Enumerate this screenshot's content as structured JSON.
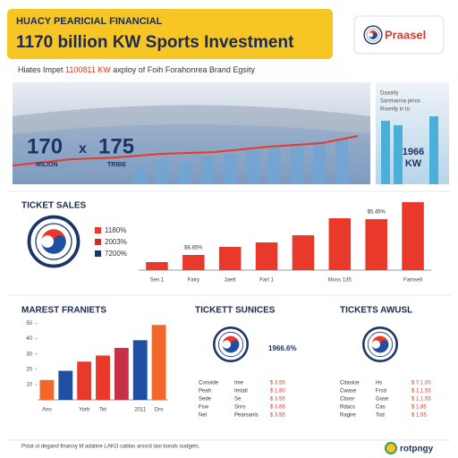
{
  "header": {
    "kicker": "HUACY PEARICIAL FINANCIAL",
    "title": "1170 billion KW Sports Investment",
    "logo": "Praasel"
  },
  "subtitle": {
    "before": "Hiates Impet",
    "highlight": "1100811 KW",
    "after": "axploy of Foih Forahonrea Brand Egsity"
  },
  "hero": {
    "big_left": "170",
    "times": "x",
    "big_right": "175",
    "unit_left": "MILION",
    "unit_right": "TRIBE"
  },
  "side_panel": {
    "lines": [
      "Daaaity",
      "Sanmanna pinos",
      "Roonlly in to"
    ],
    "value": "1966",
    "unit": "KW"
  },
  "chart_data": [
    {
      "type": "bar",
      "title": "TICKET SALES",
      "categories": [
        "Sen 1",
        "Fairy",
        "Jaett",
        "Fart 1",
        null,
        "Moss 135",
        null,
        "Famsell"
      ],
      "values": [
        9,
        17,
        26,
        31,
        39,
        58,
        57,
        76
      ],
      "color": "#e8392b",
      "ylim": [
        0,
        80
      ],
      "legend": [
        {
          "label": "1180%",
          "color": "#e8392b"
        },
        {
          "label": "2003%",
          "color": "#c9302c"
        },
        {
          "label": "7200%",
          "color": "#1d3566"
        }
      ],
      "annotations": [
        "$8.85%",
        "$5.45%"
      ]
    },
    {
      "type": "bar",
      "title": "MAREST FRANIETS",
      "categories": [
        "Ano",
        null,
        "Yorb",
        "Tet",
        null,
        "2011",
        "Dro"
      ],
      "values": [
        13,
        19,
        25,
        29,
        34,
        39,
        49
      ],
      "colors": [
        "#f2672a",
        "#1f4fa0",
        "#e8392b",
        "#e8392b",
        "#c8304a",
        "#1f4fa0",
        "#f2672a"
      ],
      "ylim": [
        0,
        55
      ],
      "yticks": [
        10,
        20,
        30,
        40,
        50
      ]
    }
  ],
  "services": {
    "title": "TICKETT SUNICES",
    "value": "1966.6%",
    "rows": [
      [
        "Conside",
        "Ime",
        "$ 3.55"
      ],
      [
        "Peah",
        "Imtatl",
        "$ 1.80"
      ],
      [
        "Sede",
        "Se",
        "$ 3.55"
      ],
      [
        "Fsw",
        "Snrs",
        "$ 3.66"
      ],
      [
        "Nel",
        "Pearsanls",
        "$ 3.55"
      ]
    ]
  },
  "awusl": {
    "title": "TICKETS AWUSL",
    "rows": [
      [
        "Citasice",
        "Hs",
        "$ 7.1.00"
      ],
      [
        "Cwase",
        "Frsd",
        "$ 1.1.55"
      ],
      [
        "Cboor",
        "Gase",
        "$ 1.1.55"
      ],
      [
        "Rdacs",
        "Cas",
        "$ 1.85"
      ],
      [
        "Ragire",
        "Tod",
        "$ 1.55"
      ]
    ]
  },
  "footer": {
    "text": "Pstat ol degand finanoy bf adatine LAKO cablas arssrd tasi bonds oudgets.",
    "logo": "rotpngy"
  }
}
